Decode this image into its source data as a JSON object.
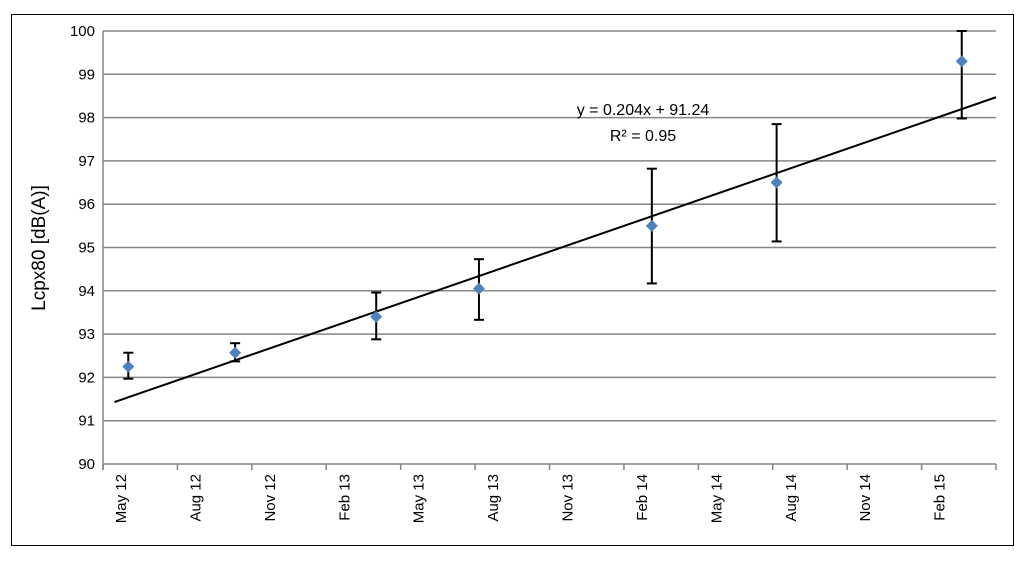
{
  "chart_data": {
    "type": "scatter",
    "title": "",
    "xlabel": "",
    "ylabel": "Lcpx80 [dB(A)]",
    "ylim": [
      90,
      100
    ],
    "yticks": [
      "90",
      "91",
      "92",
      "93",
      "94",
      "95",
      "96",
      "97",
      "98",
      "99",
      "100"
    ],
    "xlim": [
      "2012-05-01",
      "2015-05-01"
    ],
    "xticks": [
      "May 12",
      "Aug 12",
      "Nov 12",
      "Feb 13",
      "May 13",
      "Aug 13",
      "Nov 13",
      "Feb 14",
      "May 14",
      "Aug 14",
      "Nov 14",
      "Feb 15"
    ],
    "grid": "horizontal",
    "points": [
      {
        "x": "2012-06-01",
        "y": 92.25,
        "err_low": 91.97,
        "err_high": 92.57
      },
      {
        "x": "2012-10-10",
        "y": 92.57,
        "err_low": 92.37,
        "err_high": 92.79
      },
      {
        "x": "2013-04-01",
        "y": 93.4,
        "err_low": 92.88,
        "err_high": 93.96
      },
      {
        "x": "2013-08-05",
        "y": 94.05,
        "err_low": 93.33,
        "err_high": 94.73
      },
      {
        "x": "2014-03-05",
        "y": 95.5,
        "err_low": 94.17,
        "err_high": 96.82
      },
      {
        "x": "2014-08-05",
        "y": 96.5,
        "err_low": 95.14,
        "err_high": 97.85
      },
      {
        "x": "2015-03-20",
        "y": 99.3,
        "err_low": 97.98,
        "err_high": 100.0
      }
    ],
    "trendline": {
      "type": "linear",
      "x_start": "2012-05-15",
      "y_start": 91.43,
      "x_end": "2015-05-01",
      "y_end": 98.47
    },
    "equation_label": "y = 0.204x + 91.24",
    "r2_label": "R² = 0.95",
    "marker_color": "#4F81BD",
    "line_color": "#000000",
    "grid_color": "#868686"
  }
}
